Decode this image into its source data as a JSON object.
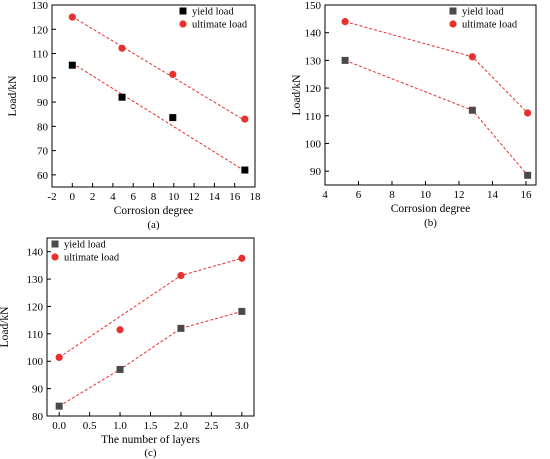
{
  "colors": {
    "yield": "#000000",
    "yield_b": "#4a4a4a",
    "ultimate": "#e8302f",
    "fit": "#e8302f"
  },
  "chart_data": [
    {
      "type": "scatter",
      "panel": "(a)",
      "xlabel": "Corrosion degree",
      "ylabel": "Load/kN",
      "xlim": [
        -2,
        18
      ],
      "ylim": [
        55,
        130
      ],
      "xticks": [
        -2,
        0,
        2,
        4,
        6,
        8,
        10,
        12,
        14,
        16,
        18
      ],
      "yticks": [
        60,
        70,
        80,
        90,
        100,
        110,
        120,
        130
      ],
      "legend": "top-right",
      "grid": false,
      "series": [
        {
          "name": "yield load",
          "marker": "square",
          "x": [
            0,
            4.9,
            9.9,
            17.0
          ],
          "y": [
            105.2,
            92.0,
            83.6,
            62.0
          ]
        },
        {
          "name": "ultimate load",
          "marker": "circle",
          "x": [
            0,
            4.9,
            9.9,
            17.0
          ],
          "y": [
            125.0,
            112.2,
            101.4,
            83.0
          ]
        }
      ],
      "fit_lines": [
        {
          "series": "yield load",
          "x": [
            0,
            17.0
          ],
          "y": [
            106.0,
            61.6
          ]
        },
        {
          "series": "ultimate load",
          "x": [
            0,
            17.0
          ],
          "y": [
            125.2,
            82.4
          ]
        }
      ]
    },
    {
      "type": "line",
      "panel": "(b)",
      "xlabel": "Corrosion degree",
      "ylabel": "Load/kN",
      "xlim": [
        4,
        16.6
      ],
      "ylim": [
        85,
        150
      ],
      "xticks": [
        4,
        6,
        8,
        10,
        12,
        14,
        16
      ],
      "yticks": [
        90,
        100,
        110,
        120,
        130,
        140,
        150
      ],
      "legend": "top-right",
      "grid": false,
      "series": [
        {
          "name": "yield load",
          "marker": "square",
          "x": [
            5.2,
            12.8,
            16.1
          ],
          "y": [
            130.0,
            112.0,
            88.5
          ]
        },
        {
          "name": "ultimate load",
          "marker": "circle",
          "x": [
            5.2,
            12.8,
            16.1
          ],
          "y": [
            144.0,
            131.3,
            111.0
          ]
        }
      ]
    },
    {
      "type": "line",
      "panel": "(c)",
      "xlabel": "The number of layers",
      "ylabel": "Load/kN",
      "xlim": [
        -0.2,
        3.2
      ],
      "ylim": [
        80,
        145
      ],
      "xticks": [
        0.0,
        0.5,
        1.0,
        1.5,
        2.0,
        2.5,
        3.0
      ],
      "xtick_labels": [
        "0.0",
        "0.5",
        "1.0",
        "1.5",
        "2.0",
        "2.5",
        "3.0"
      ],
      "yticks": [
        80,
        90,
        100,
        110,
        120,
        130,
        140
      ],
      "legend": "top-left",
      "grid": false,
      "series": [
        {
          "name": "yield load",
          "marker": "square",
          "x": [
            0,
            1,
            2,
            3
          ],
          "y": [
            83.6,
            97.0,
            112.0,
            118.2
          ]
        },
        {
          "name": "ultimate load",
          "marker": "circle",
          "x": [
            0,
            1,
            2,
            3
          ],
          "y": [
            101.4,
            111.5,
            131.3,
            137.6
          ]
        }
      ],
      "fit_lines": [
        {
          "series": "yield load",
          "x": [
            0,
            1,
            2,
            3
          ],
          "y": [
            83.6,
            97.0,
            112.0,
            118.2
          ]
        },
        {
          "series": "ultimate load",
          "x": [
            0,
            2,
            3
          ],
          "y": [
            101.4,
            131.3,
            137.6
          ]
        }
      ]
    }
  ]
}
